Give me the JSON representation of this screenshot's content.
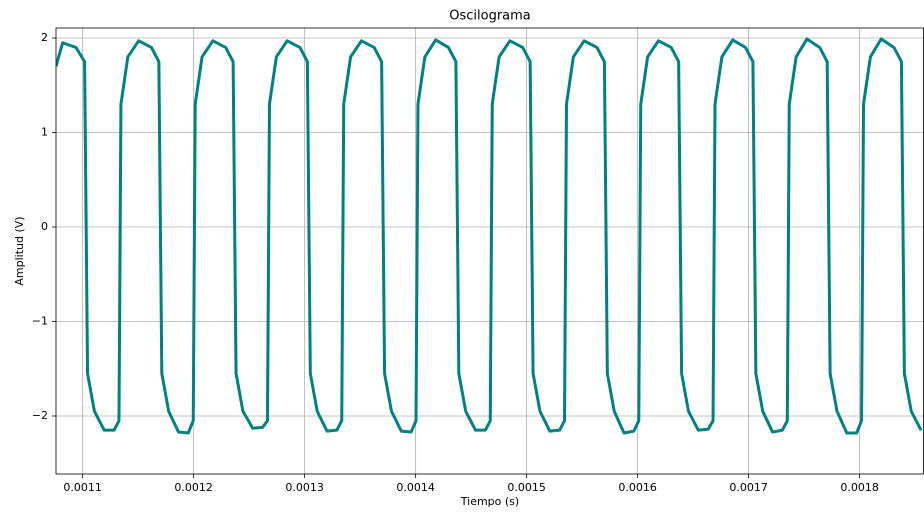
{
  "chart_data": {
    "type": "line",
    "title": "Oscilograma",
    "x_label": "Tiempo (s)",
    "y_label": "Amplitud (V)",
    "grid": true,
    "xlim": [
      0.001076,
      0.001858
    ],
    "ylim": [
      -2.614,
      2.106
    ],
    "xticks": [
      0.0011,
      0.0012,
      0.0013,
      0.0014,
      0.0015,
      0.0016,
      0.0017,
      0.0018
    ],
    "yticks": [
      {
        "value": -2,
        "label": "−2"
      },
      {
        "value": -1,
        "label": "−1"
      },
      0,
      1,
      2
    ],
    "series": [
      {
        "color": "#008080",
        "x": [
          0.001076,
          0.001082,
          0.001094,
          0.00110177,
          0.00110442,
          0.00111062,
          0.00111947,
          0.00112832,
          0.00113274,
          0.00113451,
          0.00114071,
          0.00115044,
          0.00116195,
          0.00116867,
          0.00117132,
          0.00117752,
          0.00118637,
          0.00119522,
          0.00119964,
          0.00120141,
          0.00120761,
          0.00121734,
          0.00122885,
          0.00123557,
          0.00123822,
          0.00124442,
          0.00125327,
          0.00126212,
          0.00126654,
          0.00126831,
          0.00127451,
          0.00128424,
          0.00129575,
          0.00130247,
          0.00130512,
          0.00131132,
          0.00132017,
          0.00132902,
          0.00133344,
          0.00133521,
          0.00134141,
          0.00135114,
          0.00136265,
          0.00136937,
          0.00137202,
          0.00137822,
          0.00138707,
          0.00139592,
          0.00140034,
          0.00140211,
          0.00140831,
          0.00141804,
          0.00142955,
          0.00143627,
          0.00143892,
          0.00144512,
          0.00145397,
          0.00146282,
          0.00146724,
          0.00146901,
          0.00147521,
          0.00148494,
          0.00149645,
          0.00150317,
          0.00150582,
          0.00151202,
          0.00152087,
          0.00152972,
          0.00153414,
          0.00153591,
          0.00154211,
          0.00155184,
          0.00156335,
          0.00157007,
          0.00157272,
          0.00157892,
          0.00158777,
          0.00159662,
          0.00160104,
          0.00160281,
          0.00160901,
          0.00161874,
          0.00163025,
          0.00163697,
          0.00163962,
          0.00164582,
          0.00165467,
          0.00166352,
          0.00166794,
          0.00166971,
          0.00167591,
          0.00168564,
          0.00169715,
          0.00170387,
          0.00170652,
          0.00171272,
          0.00172157,
          0.00173042,
          0.00173484,
          0.00173661,
          0.00174281,
          0.00175254,
          0.00176405,
          0.00177077,
          0.00177342,
          0.00177962,
          0.00178847,
          0.00179732,
          0.00180174,
          0.00180351,
          0.00180971,
          0.00181944,
          0.00183095,
          0.00183767,
          0.00184032,
          0.00184652,
          0.00185537
        ],
        "values": [
          1.7,
          1.95,
          1.9,
          1.75,
          -1.55,
          -1.95,
          -2.15,
          -2.15,
          -2.05,
          1.3,
          1.8,
          1.97,
          1.9,
          1.75,
          -1.55,
          -1.95,
          -2.17,
          -2.18,
          -2.05,
          1.3,
          1.8,
          1.97,
          1.9,
          1.75,
          -1.55,
          -1.95,
          -2.13,
          -2.12,
          -2.05,
          1.3,
          1.8,
          1.97,
          1.9,
          1.75,
          -1.55,
          -1.95,
          -2.16,
          -2.15,
          -2.05,
          1.3,
          1.8,
          1.97,
          1.9,
          1.75,
          -1.55,
          -1.95,
          -2.16,
          -2.17,
          -2.05,
          1.3,
          1.8,
          1.98,
          1.9,
          1.75,
          -1.55,
          -1.95,
          -2.15,
          -2.15,
          -2.05,
          1.3,
          1.8,
          1.97,
          1.9,
          1.75,
          -1.55,
          -1.95,
          -2.16,
          -2.15,
          -2.05,
          1.3,
          1.8,
          1.97,
          1.9,
          1.75,
          -1.55,
          -1.95,
          -2.18,
          -2.16,
          -2.05,
          1.3,
          1.8,
          1.97,
          1.9,
          1.75,
          -1.55,
          -1.95,
          -2.15,
          -2.14,
          -2.05,
          1.3,
          1.8,
          1.98,
          1.9,
          1.75,
          -1.55,
          -1.95,
          -2.17,
          -2.15,
          -2.05,
          1.3,
          1.8,
          1.99,
          1.9,
          1.75,
          -1.55,
          -1.95,
          -2.18,
          -2.18,
          -2.05,
          1.3,
          1.8,
          1.99,
          1.9,
          1.75,
          -1.55,
          -1.95,
          -2.15
        ]
      }
    ]
  }
}
